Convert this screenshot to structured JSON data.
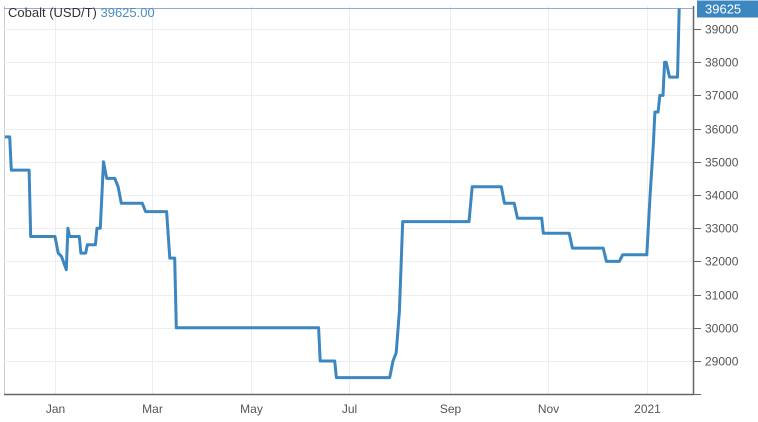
{
  "chart_data": {
    "type": "line",
    "title": "Cobalt (USD/T)",
    "current_value": "39625.00",
    "last_label": "39625",
    "x_ticks": [
      "Jan",
      "Mar",
      "May",
      "Jul",
      "Sep",
      "Nov",
      "2021"
    ],
    "x_tick_dates": [
      "2020-01-01",
      "2020-03-01",
      "2020-05-01",
      "2020-07-01",
      "2020-09-01",
      "2020-11-01",
      "2021-01-01"
    ],
    "y_ticks": [
      29000,
      30000,
      31000,
      32000,
      33000,
      34000,
      35000,
      36000,
      37000,
      38000,
      39000
    ],
    "ylim": [
      28000,
      39700
    ],
    "xlim": [
      "2019-12-01",
      "2021-01-30"
    ],
    "grid": true,
    "colors": {
      "line": "#3d87c1",
      "label_bg": "#3d87c1",
      "grid": "#eeeeee",
      "axis": "#666666",
      "last_line": "#9aa6e0"
    },
    "series": [
      {
        "points": [
          [
            "2019-12-01",
            35750
          ],
          [
            "2019-12-04",
            35750
          ],
          [
            "2019-12-05",
            34750
          ],
          [
            "2019-12-16",
            34750
          ],
          [
            "2019-12-17",
            32750
          ],
          [
            "2020-01-01",
            32750
          ],
          [
            "2020-01-03",
            32250
          ],
          [
            "2020-01-05",
            32150
          ],
          [
            "2020-01-08",
            31750
          ],
          [
            "2020-01-09",
            33000
          ],
          [
            "2020-01-10",
            32750
          ],
          [
            "2020-01-16",
            32750
          ],
          [
            "2020-01-17",
            32250
          ],
          [
            "2020-01-20",
            32250
          ],
          [
            "2020-01-21",
            32500
          ],
          [
            "2020-01-26",
            32500
          ],
          [
            "2020-01-27",
            33000
          ],
          [
            "2020-01-29",
            33000
          ],
          [
            "2020-01-31",
            35000
          ],
          [
            "2020-02-02",
            34500
          ],
          [
            "2020-02-07",
            34500
          ],
          [
            "2020-02-09",
            34250
          ],
          [
            "2020-02-11",
            33750
          ],
          [
            "2020-02-24",
            33750
          ],
          [
            "2020-02-26",
            33500
          ],
          [
            "2020-03-10",
            33500
          ],
          [
            "2020-03-12",
            32100
          ],
          [
            "2020-03-15",
            32100
          ],
          [
            "2020-03-16",
            30000
          ],
          [
            "2020-06-12",
            30000
          ],
          [
            "2020-06-13",
            29000
          ],
          [
            "2020-06-22",
            29000
          ],
          [
            "2020-06-23",
            28500
          ],
          [
            "2020-07-26",
            28500
          ],
          [
            "2020-07-28",
            29000
          ],
          [
            "2020-07-30",
            29250
          ],
          [
            "2020-08-01",
            30500
          ],
          [
            "2020-08-03",
            33200
          ],
          [
            "2020-09-13",
            33200
          ],
          [
            "2020-09-15",
            34250
          ],
          [
            "2020-10-03",
            34250
          ],
          [
            "2020-10-05",
            33750
          ],
          [
            "2020-10-11",
            33750
          ],
          [
            "2020-10-13",
            33300
          ],
          [
            "2020-10-28",
            33300
          ],
          [
            "2020-10-29",
            32850
          ],
          [
            "2020-11-14",
            32850
          ],
          [
            "2020-11-16",
            32400
          ],
          [
            "2020-12-05",
            32400
          ],
          [
            "2020-12-07",
            32000
          ],
          [
            "2020-12-15",
            32000
          ],
          [
            "2020-12-17",
            32200
          ],
          [
            "2021-01-01",
            32200
          ],
          [
            "2021-01-03",
            34000
          ],
          [
            "2021-01-05",
            35500
          ],
          [
            "2021-01-06",
            36500
          ],
          [
            "2021-01-08",
            36500
          ],
          [
            "2021-01-09",
            37000
          ],
          [
            "2021-01-11",
            37000
          ],
          [
            "2021-01-12",
            38000
          ],
          [
            "2021-01-13",
            38000
          ],
          [
            "2021-01-15",
            37550
          ],
          [
            "2021-01-20",
            37550
          ],
          [
            "2021-01-21",
            39625
          ]
        ]
      }
    ]
  }
}
